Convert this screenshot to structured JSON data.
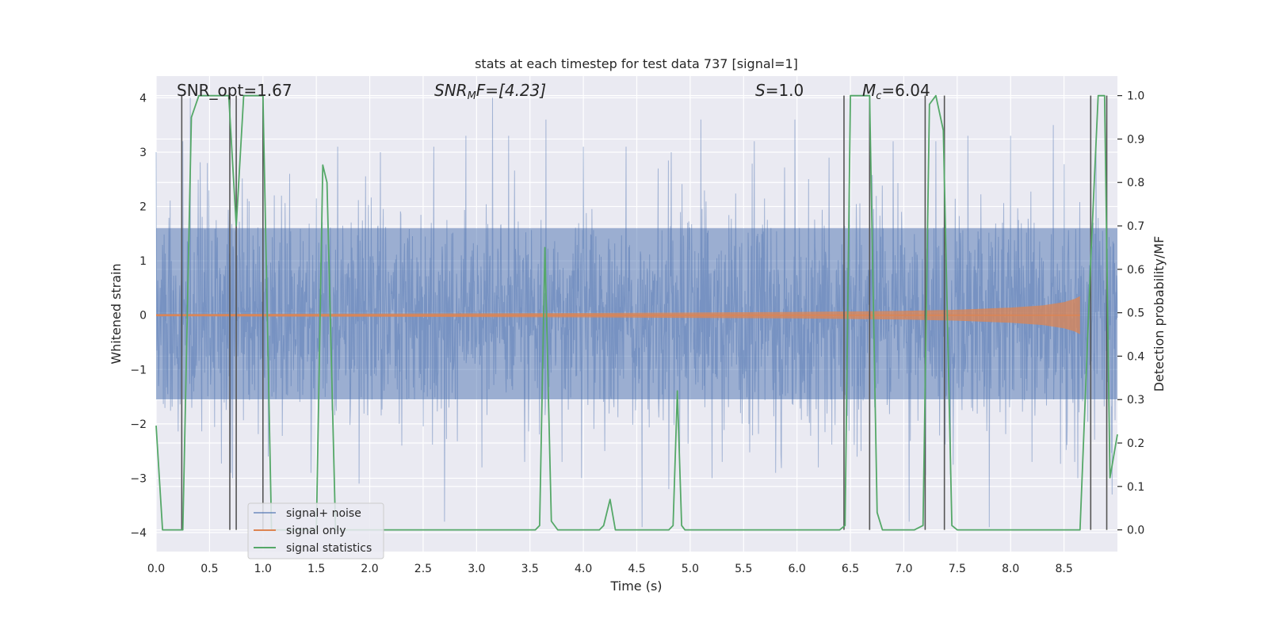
{
  "chart_data": {
    "type": "line",
    "title": "stats at each timestep for test data 737 [signal=1]",
    "xlabel": "Time (s)",
    "ylabel": "Whitened strain",
    "ylabel_right": "Detection probability/MF",
    "xlim": [
      0.0,
      9.0
    ],
    "ylim": [
      -4.35,
      4.4
    ],
    "ylim_right": [
      -0.05,
      1.045
    ],
    "x_ticks": [
      0.0,
      0.5,
      1.0,
      1.5,
      2.0,
      2.5,
      3.0,
      3.5,
      4.0,
      4.5,
      5.0,
      5.5,
      6.0,
      6.5,
      7.0,
      7.5,
      8.0,
      8.5
    ],
    "x_tick_labels": [
      "0.0",
      "0.5",
      "1.0",
      "1.5",
      "2.0",
      "2.5",
      "3.0",
      "3.5",
      "4.0",
      "4.5",
      "5.0",
      "5.5",
      "6.0",
      "6.5",
      "7.0",
      "7.5",
      "8.0",
      "8.5"
    ],
    "y_ticks": [
      4,
      3,
      2,
      1,
      0,
      -1,
      -2,
      -3,
      -4
    ],
    "y_tick_labels": [
      "4",
      "3",
      "2",
      "1",
      "0",
      "−1",
      "−2",
      "−3",
      "−4"
    ],
    "y_ticks_right": [
      1.0,
      0.9,
      0.8,
      0.7,
      0.6,
      0.5,
      0.4,
      0.3,
      0.2,
      0.1,
      0.0
    ],
    "y_tick_labels_right": [
      "1.0",
      "0.9",
      "0.8",
      "0.7",
      "0.6",
      "0.5",
      "0.4",
      "0.3",
      "0.2",
      "0.1",
      "0.0"
    ],
    "grid": true,
    "legend_position": "bottom-left",
    "annotations": {
      "snr_opt": "SNR_opt=1.67",
      "snr_mf_label": "SNR",
      "snr_mf_sub": "M",
      "snr_mf_rest": "F=[4.23]",
      "s_label": "S",
      "s_rest": "=1.0",
      "mc_label": "M",
      "mc_sub": "c",
      "mc_rest": "=6.04"
    },
    "colors": {
      "background": "#eaeaf2",
      "grid": "#ffffff",
      "signal_noise": "#4c72b0",
      "signal_only": "#dd8452",
      "signal_statistics": "#55a868",
      "vlines": "#555555"
    },
    "series": [
      {
        "name": "signal+ noise",
        "kind": "noise",
        "description_values": {
          "band_low": -1.55,
          "band_high": 1.6,
          "peak_max": 4.0,
          "peak_min": -3.95
        },
        "spikes": [
          [
            0.25,
            3.2
          ],
          [
            0.32,
            4.0
          ],
          [
            0.48,
            2.8
          ],
          [
            0.7,
            -2.9
          ],
          [
            0.76,
            1.1
          ],
          [
            1.0,
            3.3
          ],
          [
            1.05,
            -2.6
          ],
          [
            1.25,
            2.6
          ],
          [
            1.45,
            -2.9
          ],
          [
            1.7,
            3.1
          ],
          [
            1.9,
            -3.1
          ],
          [
            2.1,
            3.0
          ],
          [
            2.3,
            -2.4
          ],
          [
            2.6,
            3.1
          ],
          [
            2.7,
            -3.8
          ],
          [
            2.9,
            3.3
          ],
          [
            3.05,
            -2.8
          ],
          [
            3.15,
            4.0
          ],
          [
            3.3,
            3.3
          ],
          [
            3.45,
            -2.7
          ],
          [
            3.65,
            3.6
          ],
          [
            3.8,
            -2.7
          ],
          [
            4.0,
            3.1
          ],
          [
            4.2,
            -2.5
          ],
          [
            4.4,
            3.1
          ],
          [
            4.55,
            -3.9
          ],
          [
            4.7,
            2.7
          ],
          [
            4.8,
            -3.2
          ],
          [
            5.1,
            3.6
          ],
          [
            5.3,
            -2.7
          ],
          [
            5.6,
            3.2
          ],
          [
            5.8,
            -2.9
          ],
          [
            5.98,
            3.6
          ],
          [
            6.2,
            -2.8
          ],
          [
            6.3,
            2.9
          ],
          [
            6.6,
            -2.5
          ],
          [
            6.9,
            3.2
          ],
          [
            7.05,
            -3.8
          ],
          [
            7.3,
            3.2
          ],
          [
            7.6,
            3.3
          ],
          [
            7.8,
            -3.9
          ],
          [
            8.0,
            3.3
          ],
          [
            8.2,
            -2.7
          ],
          [
            8.4,
            3.5
          ],
          [
            8.6,
            -2.7
          ],
          [
            8.8,
            3.3
          ],
          [
            8.95,
            -3.3
          ]
        ]
      },
      {
        "name": "signal only",
        "kind": "chirp",
        "points": [
          [
            0.0,
            0.02
          ],
          [
            2.0,
            0.03
          ],
          [
            4.0,
            0.04
          ],
          [
            6.0,
            0.06
          ],
          [
            7.0,
            0.08
          ],
          [
            7.5,
            0.1
          ],
          [
            8.0,
            0.14
          ],
          [
            8.3,
            0.18
          ],
          [
            8.5,
            0.24
          ],
          [
            8.6,
            0.3
          ],
          [
            8.65,
            0.35
          ]
        ]
      },
      {
        "name": "signal statistics",
        "kind": "line",
        "axis": "right",
        "points": [
          [
            0.0,
            0.24
          ],
          [
            0.06,
            0.0
          ],
          [
            0.15,
            0.0
          ],
          [
            0.25,
            0.0
          ],
          [
            0.33,
            0.95
          ],
          [
            0.4,
            1.0
          ],
          [
            0.6,
            1.0
          ],
          [
            0.68,
            1.0
          ],
          [
            0.75,
            0.7
          ],
          [
            0.82,
            1.0
          ],
          [
            1.0,
            1.0
          ],
          [
            1.08,
            0.0
          ],
          [
            1.5,
            0.0
          ],
          [
            1.56,
            0.84
          ],
          [
            1.6,
            0.8
          ],
          [
            1.68,
            0.0
          ],
          [
            3.55,
            0.0
          ],
          [
            3.59,
            0.01
          ],
          [
            3.64,
            0.65
          ],
          [
            3.7,
            0.02
          ],
          [
            3.76,
            0.0
          ],
          [
            4.15,
            0.0
          ],
          [
            4.19,
            0.01
          ],
          [
            4.25,
            0.07
          ],
          [
            4.3,
            0.0
          ],
          [
            4.8,
            0.0
          ],
          [
            4.84,
            0.01
          ],
          [
            4.88,
            0.32
          ],
          [
            4.92,
            0.01
          ],
          [
            4.95,
            0.0
          ],
          [
            6.4,
            0.0
          ],
          [
            6.45,
            0.01
          ],
          [
            6.5,
            1.0
          ],
          [
            6.68,
            1.0
          ],
          [
            6.75,
            0.04
          ],
          [
            6.8,
            0.0
          ],
          [
            7.1,
            0.0
          ],
          [
            7.18,
            0.01
          ],
          [
            7.24,
            0.98
          ],
          [
            7.3,
            1.0
          ],
          [
            7.37,
            0.92
          ],
          [
            7.45,
            0.01
          ],
          [
            7.5,
            0.0
          ],
          [
            8.5,
            0.0
          ],
          [
            8.65,
            0.0
          ],
          [
            8.75,
            0.62
          ],
          [
            8.82,
            1.0
          ],
          [
            8.88,
            1.0
          ],
          [
            8.93,
            0.12
          ],
          [
            9.0,
            0.22
          ]
        ]
      }
    ],
    "vlines_x": [
      0.24,
      0.69,
      0.75,
      1.0,
      6.44,
      6.68,
      7.2,
      7.38,
      8.75,
      8.9
    ],
    "vlines_range": [
      0.0,
      1.0
    ]
  }
}
